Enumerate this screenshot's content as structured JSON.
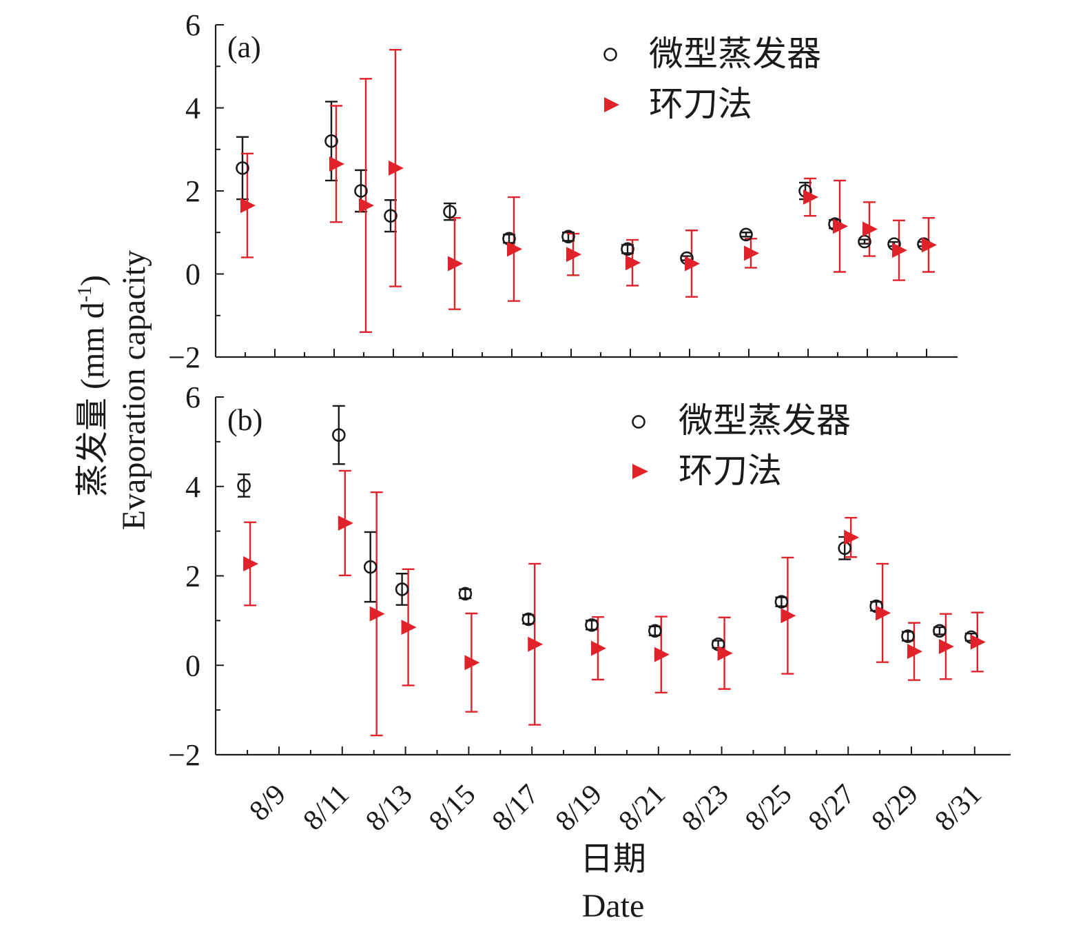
{
  "figure": {
    "ylabel_line1": "蒸发量 (mm d",
    "ylabel_sup": "-1",
    "ylabel_close": ")",
    "ylabel_line2": "Evaporation capacity",
    "xlabel_line1": "日期",
    "xlabel_line2": "Date"
  },
  "colors": {
    "evaporator": "#1a1a1a",
    "ring_knife": "#e0222a",
    "axis": "#1a1a1a"
  },
  "chart_data": [
    {
      "type": "scatter",
      "panel_label": "(a)",
      "ylim": [
        -2,
        6
      ],
      "y_ticks": [
        -2,
        0,
        2,
        4,
        6
      ],
      "y_tick_labels": [
        "−2",
        "0",
        "2",
        "4",
        "6"
      ],
      "x_unit": "day of August",
      "xlim": [
        8,
        31.5
      ],
      "x_tick_days": [
        9,
        11,
        13,
        15,
        17,
        19,
        21,
        23,
        25,
        27,
        29,
        31
      ],
      "x_tick_labels": [
        "8/9",
        "8/11",
        "8/13",
        "8/15",
        "8/17",
        "8/19",
        "8/21",
        "8/23",
        "8/25",
        "8/27",
        "8/29",
        "8/31"
      ],
      "x_tick_labels_visible": false,
      "legend": {
        "placement": "top-right",
        "entries": [
          "微型蒸发器",
          "环刀法"
        ]
      },
      "series": [
        {
          "name": "微型蒸发器",
          "marker": "open-circle",
          "x": [
            8,
            11,
            12,
            13,
            15,
            17,
            19,
            21,
            23,
            25,
            27,
            28,
            29,
            30,
            31
          ],
          "y": [
            2.55,
            3.2,
            2.0,
            1.4,
            1.5,
            0.85,
            0.9,
            0.6,
            0.38,
            0.95,
            2.0,
            1.2,
            0.78,
            0.72,
            0.72
          ],
          "err": [
            0.75,
            0.95,
            0.5,
            0.38,
            0.2,
            0.1,
            0.1,
            0.1,
            0.05,
            0.05,
            0.2,
            0.1,
            0.05,
            0.05,
            0.05
          ]
        },
        {
          "name": "环刀法",
          "marker": "right-triangle",
          "x": [
            8,
            11,
            12,
            13,
            15,
            17,
            19,
            21,
            23,
            25,
            27,
            28,
            29,
            30,
            31
          ],
          "y": [
            1.65,
            2.65,
            1.65,
            2.55,
            0.25,
            0.6,
            0.47,
            0.27,
            0.25,
            0.5,
            1.85,
            1.15,
            1.08,
            0.57,
            0.7
          ],
          "err": [
            1.25,
            1.4,
            3.05,
            2.85,
            1.1,
            1.25,
            0.5,
            0.55,
            0.8,
            0.35,
            0.45,
            1.1,
            0.65,
            0.72,
            0.65
          ]
        }
      ]
    },
    {
      "type": "scatter",
      "panel_label": "(b)",
      "ylim": [
        -2,
        6
      ],
      "y_ticks": [
        -2,
        0,
        2,
        4,
        6
      ],
      "y_tick_labels": [
        "−2",
        "0",
        "2",
        "4",
        "6"
      ],
      "x_unit": "day of August",
      "xlim": [
        7,
        31.5
      ],
      "x_tick_days": [
        9,
        11,
        13,
        15,
        17,
        19,
        21,
        23,
        25,
        27,
        29,
        31
      ],
      "x_tick_labels": [
        "8/9",
        "8/11",
        "8/13",
        "8/15",
        "8/17",
        "8/19",
        "8/21",
        "8/23",
        "8/25",
        "8/27",
        "8/29",
        "8/31"
      ],
      "x_tick_labels_visible": true,
      "legend": {
        "placement": "top-right",
        "entries": [
          "微型蒸发器",
          "环刀法"
        ]
      },
      "series": [
        {
          "name": "微型蒸发器",
          "marker": "open-circle",
          "x": [
            8,
            11,
            12,
            13,
            15,
            17,
            19,
            21,
            23,
            25,
            27,
            28,
            29,
            30,
            31
          ],
          "y": [
            4.02,
            5.15,
            2.2,
            1.7,
            1.6,
            1.03,
            0.9,
            0.77,
            0.47,
            1.42,
            2.62,
            1.32,
            0.65,
            0.77,
            0.63
          ],
          "err": [
            0.25,
            0.65,
            0.78,
            0.35,
            0.1,
            0.1,
            0.1,
            0.1,
            0.08,
            0.1,
            0.25,
            0.1,
            0.1,
            0.08,
            0.08
          ]
        },
        {
          "name": "环刀法",
          "marker": "right-triangle",
          "x": [
            8,
            11,
            12,
            13,
            15,
            17,
            19,
            21,
            23,
            25,
            27,
            28,
            29,
            30,
            31
          ],
          "y": [
            2.27,
            3.18,
            1.15,
            0.85,
            0.06,
            0.47,
            0.38,
            0.24,
            0.27,
            1.11,
            2.86,
            1.17,
            0.31,
            0.42,
            0.52
          ],
          "err": [
            0.93,
            1.17,
            2.72,
            1.3,
            1.1,
            1.8,
            0.7,
            0.85,
            0.8,
            1.3,
            0.44,
            1.1,
            0.64,
            0.73,
            0.66
          ]
        }
      ]
    }
  ]
}
